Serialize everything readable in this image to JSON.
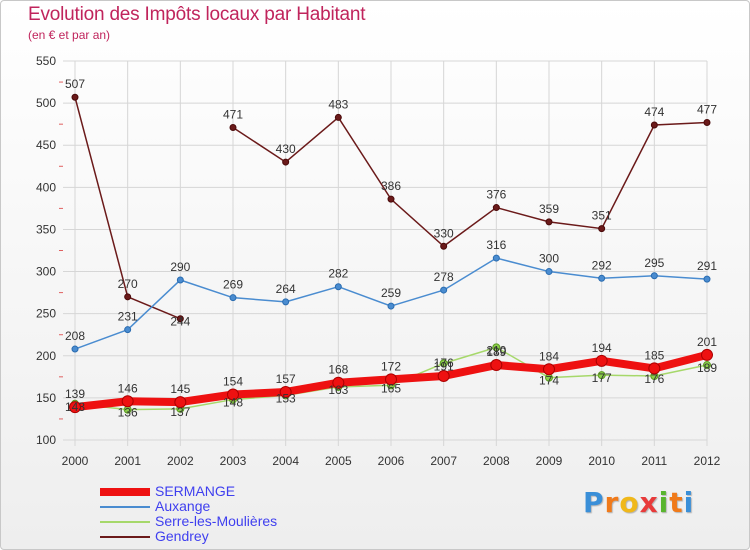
{
  "header": {
    "title": "Evolution des Impôts locaux par Habitant",
    "subtitle": "(en € et par an)"
  },
  "logo": {
    "letters": [
      "P",
      "r",
      "o",
      "x",
      "i",
      "t",
      "i"
    ],
    "colors": [
      "#3a8fd8",
      "#f07a1a",
      "#f0b81a",
      "#e83a3a",
      "#59b52e",
      "#f07a1a",
      "#3a8fd8"
    ]
  },
  "chart_data": {
    "type": "line",
    "title": "Evolution des Impôts locaux par Habitant",
    "subtitle": "(en € et par an)",
    "xlabel": "",
    "ylabel": "",
    "ylim": [
      100,
      550
    ],
    "yticks": [
      100,
      150,
      200,
      250,
      300,
      350,
      400,
      450,
      500,
      550
    ],
    "grid": true,
    "categories": [
      "2000",
      "2001",
      "2002",
      "2003",
      "2004",
      "2005",
      "2006",
      "2007",
      "2008",
      "2009",
      "2010",
      "2011",
      "2012"
    ],
    "series": [
      {
        "name": "Gendrey",
        "color": "#6b1a1a",
        "values": [
          507,
          270,
          244,
          471,
          430,
          483,
          386,
          330,
          376,
          359,
          351,
          474,
          477
        ],
        "labels": [
          "507",
          "270",
          "244",
          "471",
          "430",
          "483",
          "386",
          "330",
          "376",
          "359",
          "351",
          "474",
          "477"
        ]
      },
      {
        "name": "Auxange",
        "color": "#4a8cd0",
        "values": [
          208,
          231,
          290,
          269,
          264,
          282,
          259,
          278,
          316,
          300,
          292,
          295,
          291
        ],
        "labels": [
          "208",
          "231",
          "290",
          "269",
          "264",
          "282",
          "259",
          "278",
          "316",
          "300",
          "292",
          "295",
          "291"
        ]
      },
      {
        "name": "Serre-les-Moulières",
        "color": "#a6d86a",
        "values": [
          143,
          136,
          137,
          148,
          153,
          163,
          165,
          191,
          210,
          174,
          177,
          176,
          189
        ],
        "labels": [
          "143",
          "136",
          "137",
          "148",
          "153",
          "163",
          "165",
          "191",
          "210",
          "174",
          "177",
          "176",
          "189"
        ]
      },
      {
        "name": "SERMANGE",
        "color": "#ee1111",
        "values": [
          139,
          146,
          145,
          154,
          157,
          168,
          172,
          176,
          189,
          184,
          194,
          185,
          201
        ],
        "labels": [
          "139",
          "146",
          "145",
          "154",
          "157",
          "168",
          "172",
          "176",
          "189",
          "184",
          "194",
          "185",
          "201"
        ]
      }
    ],
    "legend": [
      "SERMANGE",
      "Auxange",
      "Serre-les-Moulières",
      "Gendrey"
    ],
    "legend_placement": "bottom-left"
  }
}
